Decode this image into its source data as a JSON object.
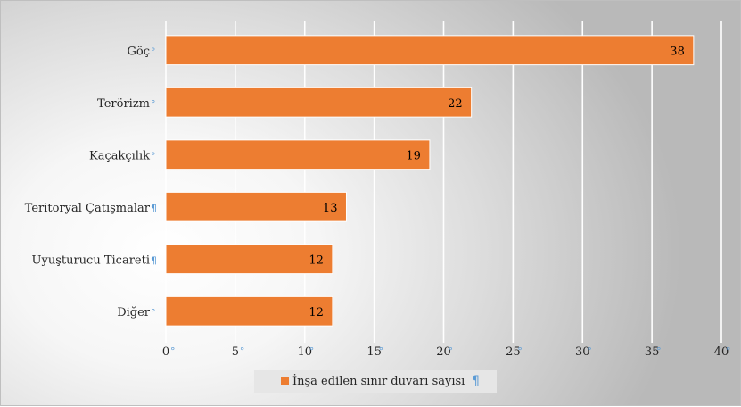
{
  "chart_data": {
    "type": "bar",
    "orientation": "horizontal",
    "categories": [
      "Göç",
      "Terörizm",
      "Kaçakçılık",
      "Teritoryal Çatışmalar",
      "Uyuşturucu Ticareti",
      "Diğer"
    ],
    "series": [
      {
        "name": "İnşa edilen sınır duvarı sayısı",
        "values": [
          38,
          22,
          19,
          13,
          12,
          12
        ]
      }
    ],
    "data_labels": [
      "38",
      "22",
      "19",
      "13",
      "12",
      "12"
    ],
    "x_ticks": [
      "0",
      "5",
      "10",
      "15",
      "20",
      "25",
      "30",
      "35",
      "40"
    ],
    "xlim": [
      0,
      40
    ],
    "grid": true,
    "legend_position": "bottom",
    "colors": {
      "bar": "#ed7d31",
      "bar_border": "#ffffff",
      "gridline": "#ffffff",
      "text": "#262626",
      "format_mark": "#5b9bd5"
    }
  }
}
